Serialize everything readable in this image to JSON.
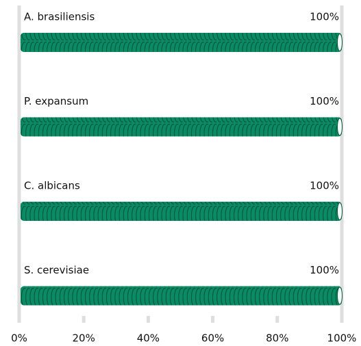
{
  "chart_data": {
    "type": "bar",
    "orientation": "horizontal",
    "categories": [
      "A. brasiliensis",
      "P. expansum",
      "C. albicans",
      "S. cerevisiae"
    ],
    "values": [
      100,
      100,
      100,
      100
    ],
    "value_labels": [
      "100%",
      "100%",
      "100%",
      "100%"
    ],
    "color": "#0b8b63",
    "xlim": [
      0,
      100
    ],
    "xticks": [
      {
        "value": 0,
        "label": "0%"
      },
      {
        "value": 20,
        "label": "20%"
      },
      {
        "value": 40,
        "label": "40%"
      },
      {
        "value": 60,
        "label": "60%"
      },
      {
        "value": 80,
        "label": "80%"
      },
      {
        "value": 100,
        "label": "100%"
      }
    ]
  }
}
